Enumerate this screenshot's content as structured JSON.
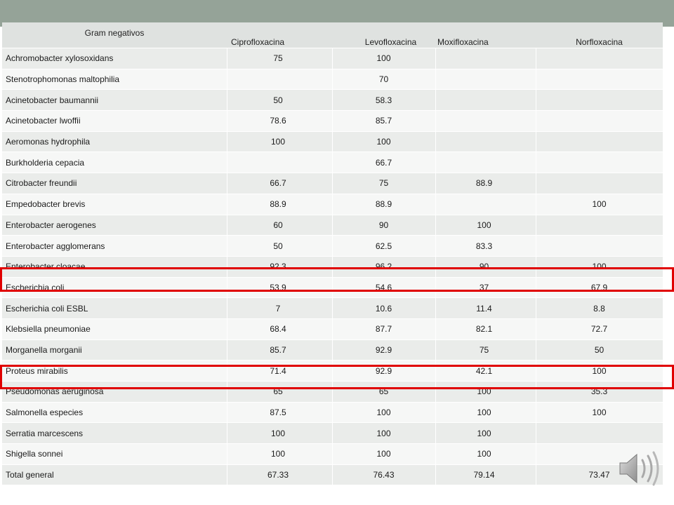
{
  "table": {
    "headers": [
      "Gram negativos",
      "Ciprofloxacina",
      "Levofloxacina",
      "Moxifloxacina",
      "Norfloxacina"
    ],
    "rows": [
      [
        "Achromobacter xylosoxidans",
        "75",
        "100",
        "",
        ""
      ],
      [
        "Stenotrophomonas maltophilia",
        "",
        "70",
        "",
        ""
      ],
      [
        "Acinetobacter baumannii",
        "50",
        "58.3",
        "",
        ""
      ],
      [
        "Acinetobacter lwoffii",
        "78.6",
        "85.7",
        "",
        ""
      ],
      [
        "Aeromonas hydrophila",
        "100",
        "100",
        "",
        ""
      ],
      [
        "Burkholderia cepacia",
        "",
        "66.7",
        "",
        ""
      ],
      [
        "Citrobacter freundii",
        "66.7",
        "75",
        "88.9",
        ""
      ],
      [
        "Empedobacter brevis",
        "88.9",
        "88.9",
        "",
        "100"
      ],
      [
        "Enterobacter aerogenes",
        "60",
        "90",
        "100",
        ""
      ],
      [
        "Enterobacter agglomerans",
        "50",
        "62.5",
        "83.3",
        ""
      ],
      [
        "Enterobacter cloacae",
        "92.3",
        "96.2",
        "90",
        "100"
      ],
      [
        "Escherichia coli",
        "53.9",
        "54.6",
        "37",
        "67.9"
      ],
      [
        "Escherichia coli ESBL",
        "7",
        "10.6",
        "11.4",
        "8.8"
      ],
      [
        "Klebsiella pneumoniae",
        "68.4",
        "87.7",
        "82.1",
        "72.7"
      ],
      [
        "Morganella morganii",
        "85.7",
        "92.9",
        "75",
        "50"
      ],
      [
        "Proteus mirabilis",
        "71.4",
        "92.9",
        "42.1",
        "100"
      ],
      [
        "Pseudomonas aeruginosa",
        "65",
        "65",
        "100",
        "35.3"
      ],
      [
        "Salmonella especies",
        "87.5",
        "100",
        "100",
        "100"
      ],
      [
        "Serratia marcescens",
        "100",
        "100",
        "100",
        ""
      ],
      [
        "Shigella sonnei",
        "100",
        "100",
        "100",
        ""
      ],
      [
        "Total general",
        "67.33",
        "76.43",
        "79.14",
        "73.47"
      ]
    ]
  },
  "highlights": [
    "Escherichia coli",
    "Pseudomonas aeruginosa"
  ],
  "colors": {
    "top_band": "#95a398",
    "row_odd": "#eaecea",
    "row_even": "#f6f7f6",
    "highlight_border": "#e00000"
  },
  "icons": {
    "audio": "speaker-icon"
  }
}
